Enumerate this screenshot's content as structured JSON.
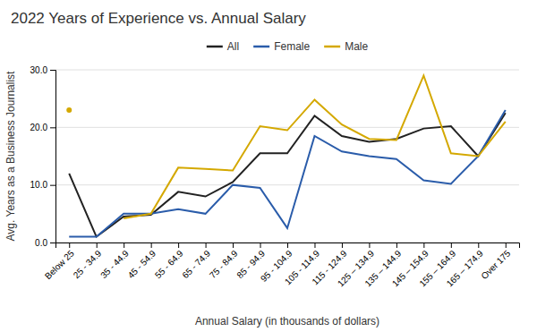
{
  "chart_data": {
    "type": "line",
    "title": "2022 Years of Experience vs. Annual Salary",
    "xlabel": "Annual Salary (in thousands of dollars)",
    "ylabel": "Avg. Years as a Business Journalist",
    "categories": [
      "Below 25",
      "25 - 34.9",
      "35 - 44.9",
      "45 - 54.9",
      "55 - 64.9",
      "65 - 74.9",
      "75 - 84.9",
      "85 - 94.9",
      "95 - 104.9",
      "105 - 114.9",
      "115 - 124.9",
      "125 – 134.9",
      "135 – 144.9",
      "145 – 154.9",
      "155 – 164.9",
      "165 – 174.9",
      "Over 175"
    ],
    "series": [
      {
        "name": "All",
        "color": "#222222",
        "values": [
          12.0,
          1.0,
          4.5,
          4.8,
          8.8,
          8.0,
          10.5,
          15.5,
          15.5,
          22.0,
          18.5,
          17.5,
          18.0,
          19.8,
          20.2,
          15.0,
          22.5
        ]
      },
      {
        "name": "Female",
        "color": "#2a5caa",
        "values": [
          1.0,
          1.0,
          5.0,
          5.0,
          5.8,
          5.0,
          10.0,
          9.5,
          2.5,
          18.5,
          15.8,
          15.0,
          14.5,
          10.8,
          10.2,
          15.0,
          23.0
        ]
      },
      {
        "name": "Male",
        "color": "#d4a800",
        "values": [
          23.0,
          null,
          4.2,
          5.0,
          13.0,
          12.8,
          12.5,
          20.2,
          19.5,
          24.8,
          20.5,
          18.0,
          17.8,
          29.0,
          15.5,
          15.0,
          21.0
        ]
      }
    ],
    "ylim": [
      0,
      30
    ],
    "yticks": [
      {
        "value": 0,
        "label": "0.0"
      },
      {
        "value": 10,
        "label": "10.0"
      },
      {
        "value": 20,
        "label": "20.0"
      },
      {
        "value": 30,
        "label": "30.0"
      }
    ],
    "grid": true,
    "legend": "top"
  }
}
